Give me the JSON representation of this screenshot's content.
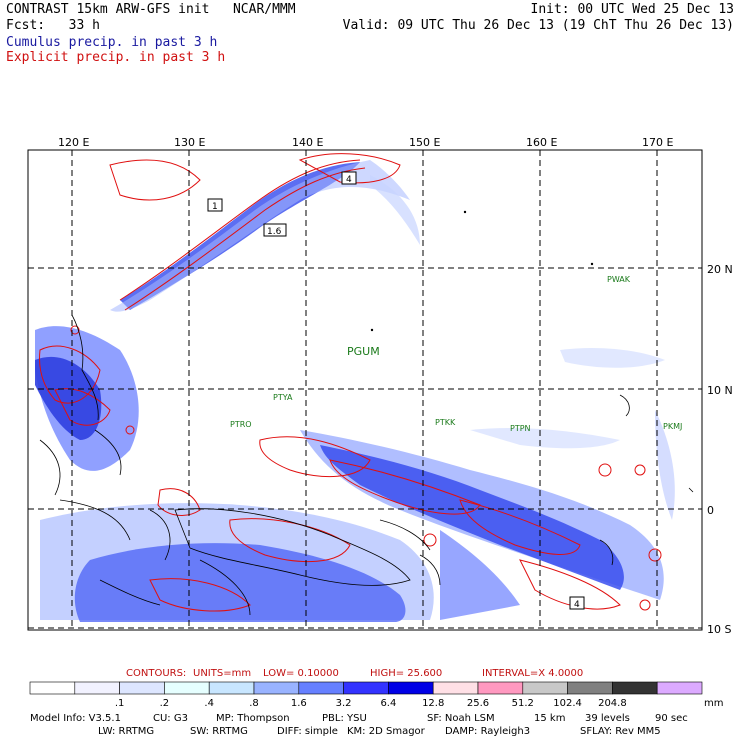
{
  "header": {
    "line1_left": "CONTRAST 15km ARW-GFS init   NCAR/MMM",
    "line2_left": "Fcst:   33 h",
    "line1_right": "Init: 00 UTC Wed 25 Dec 13",
    "line2_right": "Valid: 09 UTC Thu 26 Dec 13 (19 ChT Thu 26 Dec 13)",
    "legend_cumulus": "Cumulus precip. in past 3 h",
    "legend_explicit": "Explicit precip. in past 3 h"
  },
  "map": {
    "lon_labels": [
      "120 E",
      "130 E",
      "140 E",
      "150 E",
      "160 E",
      "170 E"
    ],
    "lat_labels": [
      "20 N",
      "10 N",
      "0",
      "10 S"
    ],
    "stations": [
      {
        "id": "PWAK",
        "big": false
      },
      {
        "id": "PGUM",
        "big": true
      },
      {
        "id": "PTYA",
        "big": false
      },
      {
        "id": "PTRO",
        "big": false
      },
      {
        "id": "PTKK",
        "big": false
      },
      {
        "id": "PTPN",
        "big": false
      },
      {
        "id": "PKMJ",
        "big": false
      }
    ],
    "contour_box_labels": [
      "1",
      "1.6",
      "4",
      "4"
    ],
    "colors": {
      "contour": "#e01010",
      "land": "#000000",
      "grid": "#000000"
    }
  },
  "contour_line": {
    "label": "CONTOURS:",
    "units": "UNITS=mm",
    "low": "LOW= 0.10000",
    "high": "HIGH= 25.600",
    "interval": "INTERVAL=X 4.0000"
  },
  "colorbar": {
    "values": [
      ".1",
      ".2",
      ".4",
      ".8",
      "1.6",
      "3.2",
      "6.4",
      "12.8",
      "25.6",
      "51.2",
      "102.4",
      "204.8"
    ],
    "unit": "mm",
    "colors": [
      "#ffffff",
      "#f2f2ff",
      "#dde6ff",
      "#e6ffff",
      "#c8e6ff",
      "#99b3ff",
      "#6680ff",
      "#3333ff",
      "#0000e6",
      "#ffe0e6",
      "#ff99c0",
      "#c8c8c8",
      "#808080",
      "#333333",
      "#dcaaff"
    ]
  },
  "footer": {
    "line1": [
      "Model Info: V3.5.1",
      "CU: G3",
      "MP: Thompson",
      "PBL: YSU",
      "SF: Noah LSM",
      "15 km",
      "39 levels",
      "90 sec"
    ],
    "line2": [
      "LW: RRTMG",
      "SW: RRTMG",
      "DIFF: simple",
      "KM: 2D Smagor",
      "DAMP: Rayleigh3",
      "SFLAY: Rev MM5"
    ]
  }
}
